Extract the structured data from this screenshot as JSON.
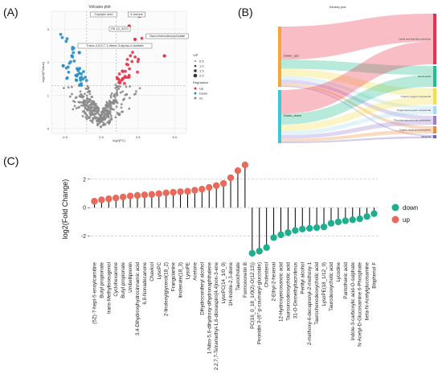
{
  "panels": {
    "a": "(A)",
    "b": "(B)",
    "c": "(C)"
  },
  "colors": {
    "up": "#e8334a",
    "down": "#2a8fc4",
    "ns": "#8a8a8a",
    "lollipop_up": "#e96a5a",
    "lollipop_down": "#1fae8e"
  },
  "chart_data": [
    {
      "type": "scatter",
      "title": "Volcano plot",
      "xlabel": "log2(FC)",
      "ylabel": "-log10(PValue)",
      "xticks": [
        "-2.5",
        "0.0",
        "2.5",
        "5.0"
      ],
      "yticks": [
        "0",
        "1",
        "2",
        "3"
      ],
      "annotations": [
        "Caprylic acid",
        "4-Ionone",
        "PA 12_3/2O",
        "Taurochenodeoxycholate",
        "Trans-4,5,6,7,1-diene-3-alpha-ol acetate"
      ],
      "legend": {
        "vip_title": "VIP",
        "vip_levels": [
          "0.5",
          "1.0",
          "1.5",
          "2.0"
        ],
        "regulation_title": "Regulation",
        "regulation_levels": [
          "Up",
          "Down",
          "ns"
        ]
      }
    },
    {
      "type": "sankey",
      "title": "Sankey plot",
      "sources": [
        "Down_ups",
        "Down_down"
      ],
      "targets": [
        "Lipids and lipid-like molecules",
        "Benzenoids",
        "Organic oxygen compounds",
        "Organoheterocyclic compounds",
        "Phenylpropanoids and polyketides",
        "Organic acids and derivatives",
        "Alkaloids"
      ]
    },
    {
      "type": "bar",
      "ylabel": "log2(Fold Change)",
      "ylim": [
        -3.6,
        3.4
      ],
      "yticks": [
        -2,
        0,
        2
      ],
      "legend": {
        "position": "right",
        "entries": [
          "down",
          "up"
        ]
      },
      "categories": [
        "(5Z)-7-hept-5-enoylcarnitine",
        "Butyl propionate",
        "trans-Methylisoeugenol",
        "Cyclohexanone",
        "Butyl propionate",
        "Umbelliprenin",
        "3,4-Dihydroxyhydrocinnamic acid",
        "6,8-Nonadecanone",
        "Chavicol",
        "LysoPC",
        "2-linoleoylglycerol(18_2)",
        "Frangulanine",
        "linolenate(18_3)",
        "LysoPE",
        "Acetone",
        "Dihydroconiferyl alcohol",
        "1-Nitro-5,6-dihydroxy-dihydronaphthalene",
        "2,2,7,7-Tetramethyl-1,6-dioxaspiro[4.4]non-3-ene",
        "LysoPC(14_1/0_0)",
        "1H-Indole-2,3-dione",
        "Taurocholate",
        "Formononetin B",
        "PC(16_0_18_1/0(2)-O(12,13))",
        "Peonidin 3-(6''-p-coumaryl-glucoside)",
        "Cholesterol",
        "2-Ethyl-2-hexenal",
        "12-Hydroxyeicosanoic acid",
        "Taurourcodeoxycholic acid",
        "31-O-Demethyltacrolimus",
        "Perillyl alcohol",
        "2-methoxy-6-decaprenyl-2-methoxy-1",
        "Taurochenodeoxycholic acid",
        "LysoPE(18_1/12_0)",
        "Taurodeoxycholic acid",
        "Lycodine",
        "Pantothenic acid",
        "Indole-3-carboxylic acid-O-sulphate",
        "N-Acetyl-D-Glucosamine 6-Phosphate",
        "beta-N-Acetylglucosamine",
        "Bisphenol F"
      ],
      "series": [
        {
          "name": "up",
          "values": [
            0.45,
            0.55,
            0.62,
            0.68,
            0.75,
            0.82,
            0.86,
            0.9,
            0.93,
            0.98,
            1.04,
            1.08,
            1.12,
            1.15,
            1.22,
            1.3,
            1.42,
            1.55,
            1.7,
            2.1,
            2.6,
            3.0,
            null,
            null,
            null,
            null,
            null,
            null,
            null,
            null,
            null,
            null,
            null,
            null,
            null,
            null,
            null,
            null,
            null,
            null
          ]
        },
        {
          "name": "down",
          "values": [
            null,
            null,
            null,
            null,
            null,
            null,
            null,
            null,
            null,
            null,
            null,
            null,
            null,
            null,
            null,
            null,
            null,
            null,
            null,
            null,
            null,
            null,
            -3.2,
            -3.05,
            -2.8,
            -2.1,
            -1.9,
            -1.75,
            -1.6,
            -1.5,
            -1.45,
            -1.4,
            -1.35,
            -1.1,
            -1.0,
            -0.92,
            -0.85,
            -0.78,
            -0.62,
            -0.42
          ]
        }
      ]
    }
  ]
}
